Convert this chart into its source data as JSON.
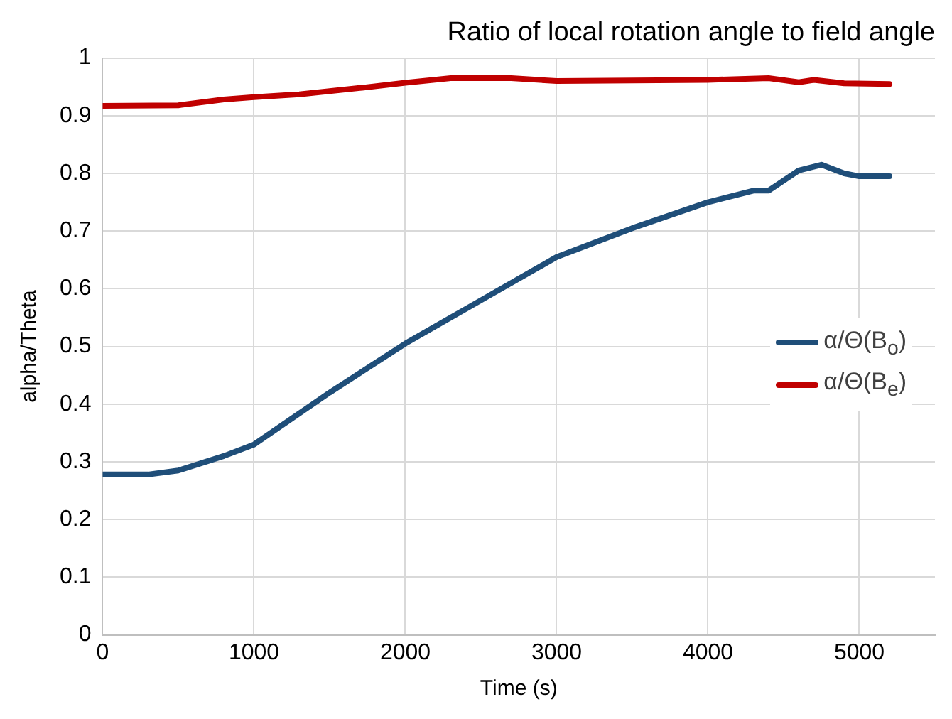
{
  "chart_data": {
    "type": "line",
    "title": "Ratio of local rotation angle to field angle",
    "xlabel": "Time (s)",
    "ylabel": "alpha/Theta",
    "xlim": [
      0,
      5500
    ],
    "xticks": [
      0,
      1000,
      2000,
      3000,
      4000,
      5000
    ],
    "ylim": [
      0,
      1
    ],
    "yticks": [
      0,
      0.1,
      0.2,
      0.3,
      0.4,
      0.5,
      0.6,
      0.7,
      0.8,
      0.9,
      1
    ],
    "grid": true,
    "legend": "right",
    "marker": "none",
    "line_style": "solid",
    "series": [
      {
        "name": "α/Θ(B$_{o}$)",
        "color": "#1f4e79",
        "x": [
          0,
          300,
          500,
          800,
          1000,
          1500,
          2000,
          2500,
          3000,
          3500,
          4000,
          4300,
          4400,
          4600,
          4750,
          4900,
          5000,
          5200
        ],
        "values": [
          0.278,
          0.278,
          0.285,
          0.31,
          0.33,
          0.42,
          0.505,
          0.58,
          0.655,
          0.705,
          0.75,
          0.77,
          0.77,
          0.805,
          0.815,
          0.8,
          0.795,
          0.795
        ]
      },
      {
        "name": "α/Θ(B$_{e}$)",
        "color": "#c00000",
        "x": [
          0,
          500,
          800,
          1000,
          1300,
          1700,
          2000,
          2300,
          2700,
          3000,
          3500,
          4000,
          4400,
          4600,
          4700,
          4900,
          5200
        ],
        "values": [
          0.917,
          0.918,
          0.928,
          0.932,
          0.937,
          0.948,
          0.957,
          0.965,
          0.965,
          0.96,
          0.961,
          0.962,
          0.965,
          0.958,
          0.962,
          0.956,
          0.955
        ]
      }
    ]
  }
}
